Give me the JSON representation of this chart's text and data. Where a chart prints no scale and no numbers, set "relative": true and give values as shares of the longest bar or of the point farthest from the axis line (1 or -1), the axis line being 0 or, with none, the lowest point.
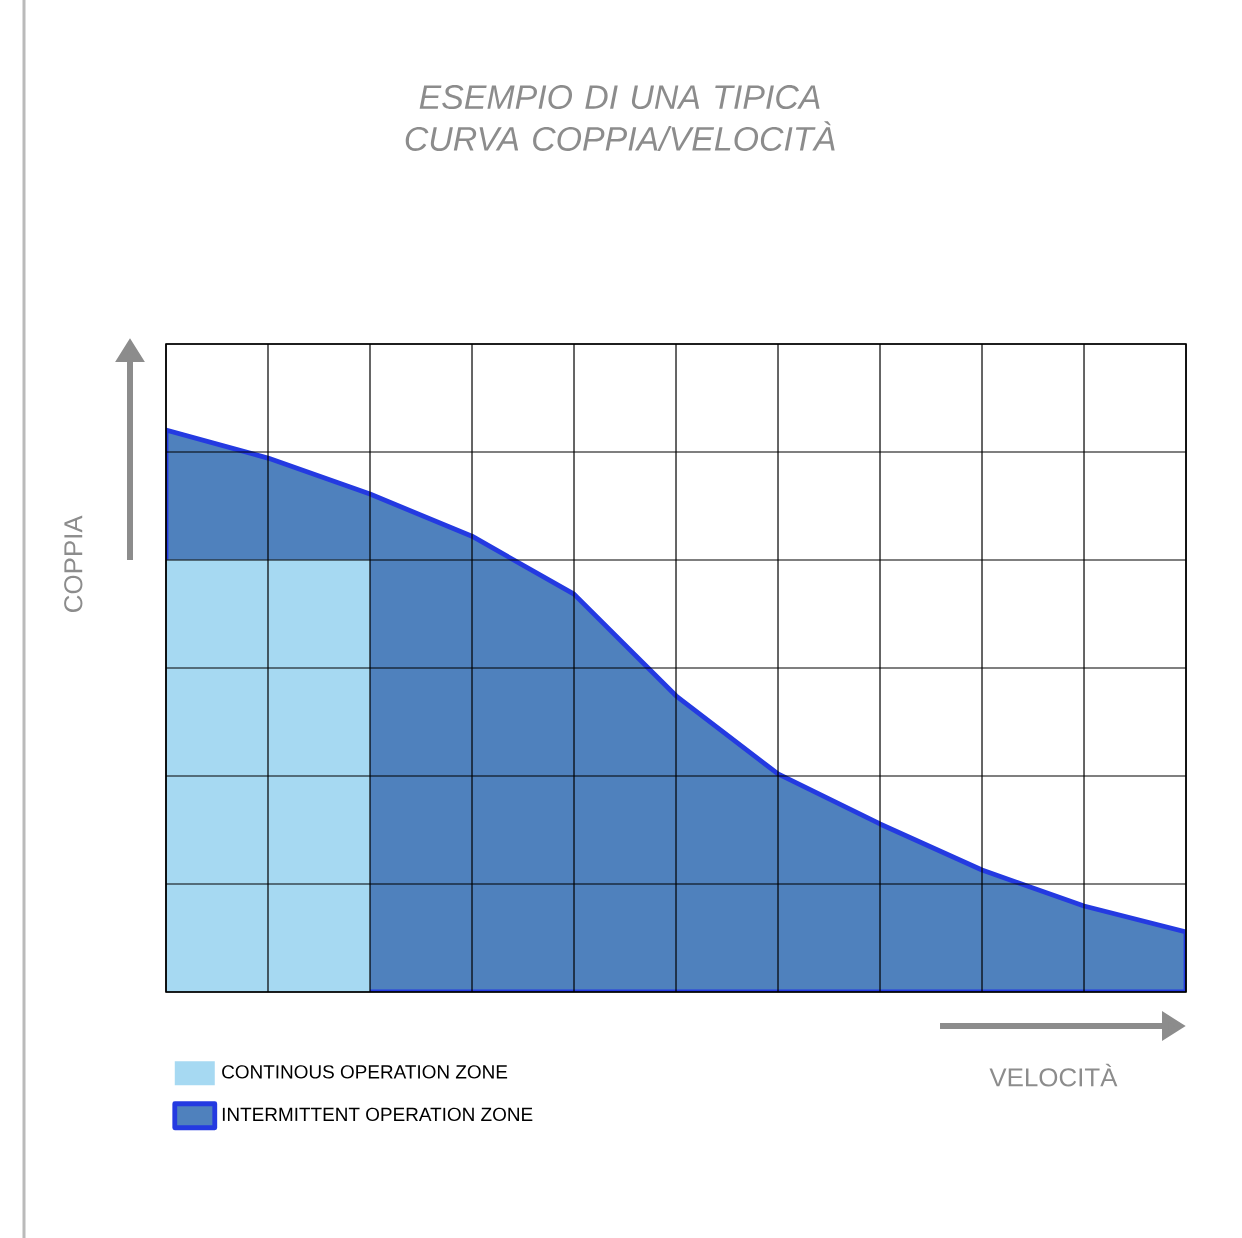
{
  "chart_data": {
    "type": "area",
    "title": "ESEMPIO DI UNA TIPICA CURVA COPPIA/VELOCITÀ",
    "xlabel": "VELOCITÀ",
    "ylabel": "COPPIA",
    "relative": true,
    "grid": true,
    "legend": "bottom left",
    "categories": [
      null,
      null,
      null,
      null,
      null,
      null,
      null,
      null,
      null,
      null,
      null
    ],
    "series": [
      {
        "name": "INTERMITTENT OPERATION ZONE",
        "color": "#4f81bd",
        "values": [
          1.0,
          0.95,
          0.886,
          0.811,
          0.708,
          0.527,
          0.388,
          0.299,
          0.217,
          0.153,
          0.107
        ]
      },
      {
        "name": "CONTINOUS OPERATION ZONE",
        "color": "#a6d9f2",
        "values": [
          0.769,
          0.769,
          0.769,
          null,
          null,
          null,
          null,
          null,
          null,
          null,
          null
        ]
      }
    ]
  }
}
